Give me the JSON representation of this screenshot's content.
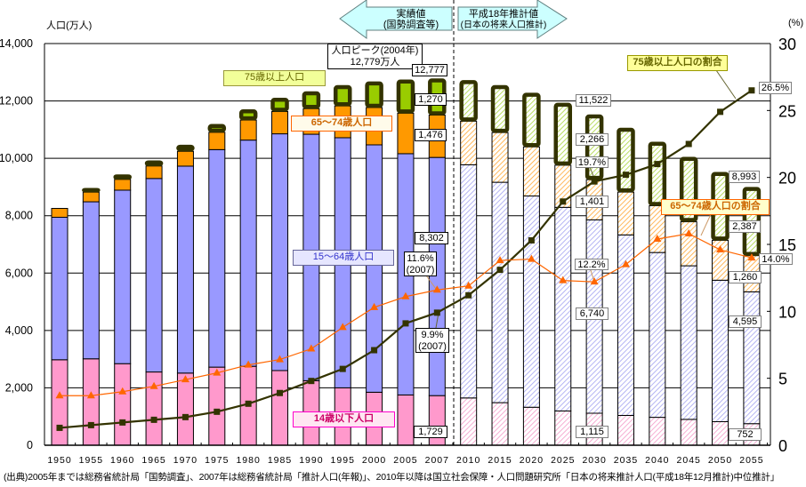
{
  "header": {
    "left_axis_unit": "人口(万人)",
    "right_axis_unit": "(%)",
    "actual_arrow": {
      "line1": "実績値",
      "line2": "(国勢調査等)"
    },
    "projection_arrow": {
      "line1": "平成18年推計値",
      "line2": "(日本の将来人口推計)"
    }
  },
  "annotations": {
    "peak": {
      "line1": "人口ピーク(2004年)",
      "line2": "12,779万人"
    },
    "legend": {
      "age75plus": "75歳以上人口",
      "age65_74": "65～74歳人口",
      "age15_64": "15～64歳人口",
      "age0_14": "14歳以下人口",
      "ratio75plus": "75歳以上人口の割合",
      "ratio65_74": "65～74歳人口の割合"
    },
    "values_2007": {
      "total": "12,777",
      "age75plus": "1,270",
      "age65_74": "1,476",
      "age15_64": "8,302",
      "age0_14": "1,729",
      "ratio65_74": "11.6%",
      "ratio65_74_year": "(2007)",
      "ratio75plus": "9.9%",
      "ratio75plus_year": "(2007)"
    },
    "values_2030": {
      "total": "11,522",
      "age75plus": "2,266",
      "ratio75plus": "19.7%",
      "age65_74": "1,401",
      "ratio65_74": "12.2%",
      "age15_64": "6,740",
      "age0_14": "1,115"
    },
    "values_2055": {
      "total": "8,993",
      "age75plus": "2,387",
      "age65_74": "1,260",
      "age15_64": "4,595",
      "age0_14": "752",
      "ratio75plus": "26.5%",
      "ratio65_74": "14.0%"
    }
  },
  "footer": {
    "source": "(出典)2005年までは総務省統計局「国勢調査」、2007年は総務省統計局「推計人口(年報)」、2010年以降は国立社会保障・人口問題研究所「日本の将来推計人口(平成18年12月推計)中位推計」"
  },
  "colors": {
    "age0_14": "#FF99CC",
    "age15_64": "#9999FF",
    "age65_74": "#FF9900",
    "age75plus": "#99CC00",
    "age75plus_border": "#333300",
    "ratio75plus_line": "#333300",
    "ratio65_74_line": "#FF6600",
    "arrow_fill": "#CCFFFF"
  },
  "chart_data": {
    "type": "bar",
    "stacked": true,
    "title": "",
    "xlabel": "",
    "ylabel": "人口(万人)",
    "y2label": "(%)",
    "ylim": [
      0,
      14000
    ],
    "y2lim": [
      0,
      30
    ],
    "yticks": [
      0,
      2000,
      4000,
      6000,
      8000,
      10000,
      12000,
      14000
    ],
    "ytick_labels": [
      "0",
      "2,000",
      "4,000",
      "6,000",
      "8,000",
      "10,000",
      "12,000",
      "14,000"
    ],
    "y2ticks": [
      0,
      5,
      10,
      15,
      20,
      25,
      30
    ],
    "y2tick_labels": [
      "0",
      "5",
      "10",
      "15",
      "20",
      "25",
      "30"
    ],
    "grid": true,
    "projection_start": "2010",
    "categories": [
      "1950",
      "1955",
      "1960",
      "1965",
      "1970",
      "1975",
      "1980",
      "1985",
      "1990",
      "1995",
      "2000",
      "2005",
      "2007",
      "2010",
      "2015",
      "2020",
      "2025",
      "2030",
      "2035",
      "2040",
      "2045",
      "2050",
      "2055"
    ],
    "series": [
      {
        "key": "age0_14",
        "name": "14歳以下人口",
        "axis": "left",
        "values": [
          2979,
          3012,
          2843,
          2553,
          2515,
          2722,
          2751,
          2603,
          2249,
          2001,
          1847,
          1752,
          1729,
          1648,
          1484,
          1324,
          1195,
          1115,
          1039,
          973,
          901,
          821,
          752
        ]
      },
      {
        "key": "age15_64",
        "name": "15～64歳人口",
        "axis": "left",
        "values": [
          4966,
          5473,
          6047,
          6744,
          7212,
          7581,
          7884,
          8251,
          8590,
          8716,
          8622,
          8409,
          8302,
          8128,
          7681,
          7363,
          7096,
          6740,
          6292,
          5744,
          5353,
          4930,
          4595
        ]
      },
      {
        "key": "age65_74",
        "name": "65～74歳人口",
        "axis": "left",
        "values": [
          309,
          336,
          376,
          435,
          516,
          603,
          699,
          776,
          892,
          1109,
          1301,
          1412,
          1476,
          1517,
          1733,
          1711,
          1469,
          1401,
          1492,
          1630,
          1534,
          1391,
          1260
        ]
      },
      {
        "key": "age75plus",
        "name": "75歳以上人口",
        "axis": "left",
        "values": [
          107,
          139,
          164,
          189,
          224,
          284,
          366,
          471,
          597,
          717,
          901,
          1164,
          1270,
          1424,
          1645,
          1879,
          2167,
          2266,
          2233,
          2223,
          2256,
          2373,
          2387
        ]
      }
    ],
    "line_series": [
      {
        "key": "ratio75plus",
        "name": "75歳以上人口の割合",
        "axis": "right",
        "marker": "square",
        "values": [
          1.3,
          1.5,
          1.7,
          1.9,
          2.1,
          2.5,
          3.1,
          3.9,
          4.8,
          5.7,
          7.1,
          9.1,
          9.9,
          11.2,
          13.1,
          15.3,
          18.2,
          19.7,
          20.2,
          21.0,
          22.5,
          24.9,
          26.5
        ]
      },
      {
        "key": "ratio65_74",
        "name": "65～74歳人口の割合",
        "axis": "right",
        "marker": "triangle",
        "values": [
          3.7,
          3.7,
          4.0,
          4.4,
          4.9,
          5.4,
          6.0,
          6.4,
          7.2,
          8.8,
          10.3,
          11.1,
          11.6,
          11.9,
          13.8,
          13.9,
          12.3,
          12.2,
          13.5,
          15.4,
          15.8,
          14.6,
          14.0
        ]
      }
    ]
  }
}
